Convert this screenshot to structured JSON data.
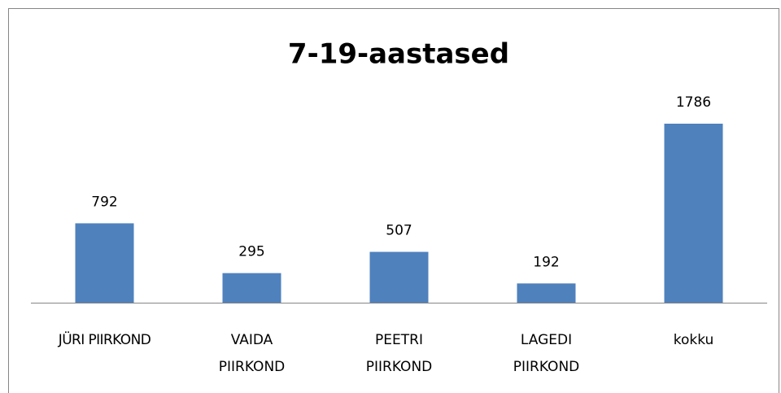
{
  "chart_data": {
    "type": "bar",
    "title": "7-19-aastased",
    "categories": [
      "JÜRI PIIRKOND",
      "VAIDA PIIRKOND",
      "PEETRI PIIRKOND",
      "LAGEDI PIIRKOND",
      "kokku"
    ],
    "values": [
      792,
      295,
      507,
      192,
      1786
    ],
    "color": "#4f81bd"
  }
}
